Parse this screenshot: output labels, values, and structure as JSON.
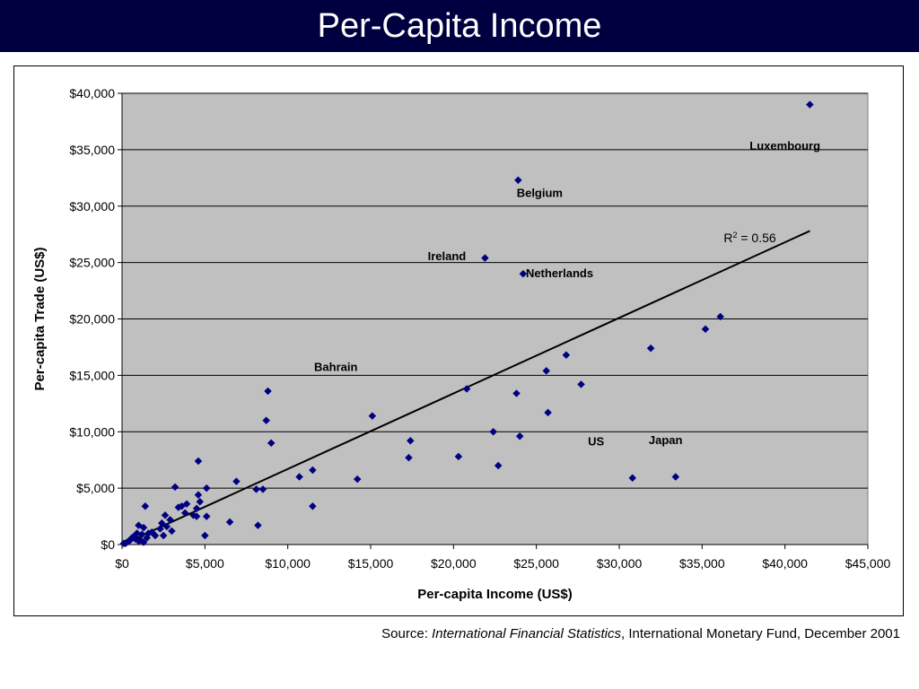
{
  "header": {
    "title": "Per-Capita Income"
  },
  "source": {
    "prefix": "Source: ",
    "publication": "International Financial Statistics",
    "suffix": ", International Monetary Fund, December 2001"
  },
  "colors": {
    "title_background": "#000040",
    "plot_background": "#c0c0c0",
    "marker": "#000080",
    "trendline": "#000000"
  },
  "chart_data": {
    "type": "scatter",
    "xlabel": "Per-capita Income (US$)",
    "ylabel": "Per-capita Trade (US$)",
    "xlim": [
      0,
      45000
    ],
    "ylim": [
      0,
      40000
    ],
    "x_ticks": [
      0,
      5000,
      10000,
      15000,
      20000,
      25000,
      30000,
      35000,
      40000,
      45000
    ],
    "y_ticks": [
      0,
      5000,
      10000,
      15000,
      20000,
      25000,
      30000,
      35000,
      40000
    ],
    "x_tick_labels": [
      "$0",
      "$5,000",
      "$10,000",
      "$15,000",
      "$20,000",
      "$25,000",
      "$30,000",
      "$35,000",
      "$40,000",
      "$45,000"
    ],
    "y_tick_labels": [
      "$0",
      "$5,000",
      "$10,000",
      "$15,000",
      "$20,000",
      "$25,000",
      "$30,000",
      "$35,000",
      "$40,000"
    ],
    "grid": "horizontal",
    "marker_shape": "diamond",
    "points": [
      [
        41500,
        39000
      ],
      [
        23900,
        32300
      ],
      [
        21900,
        25400
      ],
      [
        24200,
        24000
      ],
      [
        36100,
        20200
      ],
      [
        35200,
        19100
      ],
      [
        31900,
        17400
      ],
      [
        26800,
        16800
      ],
      [
        25600,
        15400
      ],
      [
        27700,
        14200
      ],
      [
        8800,
        13600
      ],
      [
        20800,
        13800
      ],
      [
        23800,
        13400
      ],
      [
        25700,
        11700
      ],
      [
        15100,
        11400
      ],
      [
        8700,
        11000
      ],
      [
        17400,
        9200
      ],
      [
        9000,
        9000
      ],
      [
        22400,
        10000
      ],
      [
        24000,
        9600
      ],
      [
        17300,
        7700
      ],
      [
        20300,
        7800
      ],
      [
        22700,
        7000
      ],
      [
        4600,
        7400
      ],
      [
        6900,
        5600
      ],
      [
        10700,
        6000
      ],
      [
        11500,
        6600
      ],
      [
        14200,
        5800
      ],
      [
        30800,
        5900
      ],
      [
        33400,
        6000
      ],
      [
        8100,
        4900
      ],
      [
        8500,
        4900
      ],
      [
        3200,
        5100
      ],
      [
        5100,
        5000
      ],
      [
        11500,
        3400
      ],
      [
        6500,
        2000
      ],
      [
        8200,
        1700
      ],
      [
        5000,
        800
      ],
      [
        5100,
        2500
      ],
      [
        4600,
        4400
      ],
      [
        4700,
        3800
      ],
      [
        4500,
        3200
      ],
      [
        3600,
        3400
      ],
      [
        3900,
        3600
      ],
      [
        3400,
        3300
      ],
      [
        4300,
        2600
      ],
      [
        4500,
        2500
      ],
      [
        3800,
        2800
      ],
      [
        2600,
        2600
      ],
      [
        2900,
        2200
      ],
      [
        2400,
        1900
      ],
      [
        2700,
        1600
      ],
      [
        3000,
        1200
      ],
      [
        2300,
        1400
      ],
      [
        1400,
        3400
      ],
      [
        1000,
        1700
      ],
      [
        1300,
        1500
      ],
      [
        1200,
        900
      ],
      [
        1600,
        1000
      ],
      [
        2000,
        800
      ],
      [
        1100,
        400
      ],
      [
        1500,
        600
      ],
      [
        2500,
        800
      ],
      [
        900,
        1000
      ],
      [
        700,
        700
      ],
      [
        500,
        400
      ],
      [
        800,
        500
      ],
      [
        400,
        300
      ],
      [
        300,
        200
      ],
      [
        200,
        100
      ],
      [
        600,
        600
      ],
      [
        1800,
        1100
      ],
      [
        1000,
        300
      ],
      [
        100,
        100
      ],
      [
        1300,
        200
      ]
    ],
    "annotations": [
      {
        "text": "Luxembourg",
        "x": 40000,
        "y": 35000
      },
      {
        "text": "Belgium",
        "x": 25200,
        "y": 30800
      },
      {
        "text": "Ireland",
        "x": 19600,
        "y": 25200
      },
      {
        "text": "Netherlands",
        "x": 26400,
        "y": 23700
      },
      {
        "text": "Bahrain",
        "x": 12900,
        "y": 15400
      },
      {
        "text": "US",
        "x": 28600,
        "y": 8800
      },
      {
        "text": "Japan",
        "x": 32800,
        "y": 8900
      }
    ],
    "trendline": {
      "type": "linear",
      "x_start": 0,
      "y_start": 0,
      "x_end": 41500,
      "y_end": 27800,
      "r_squared_prefix": "R",
      "r_squared_exponent": "2",
      "r_squared_value": " = 0.56",
      "label_x": 36300,
      "label_y": 26800
    }
  }
}
